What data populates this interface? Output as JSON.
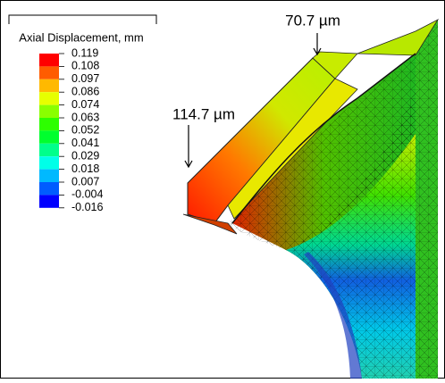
{
  "legend": {
    "title": "Axial Displacement, mm",
    "labels": [
      "0.119",
      "0.108",
      "0.097",
      "0.086",
      "0.074",
      "0.063",
      "0.052",
      "0.041",
      "0.029",
      "0.018",
      "0.007",
      "-0.004",
      "-0.016"
    ],
    "colors": [
      "#ff0000",
      "#ff5c00",
      "#ffb900",
      "#e6ff00",
      "#8aff00",
      "#2dff00",
      "#00ff2e",
      "#00ff8b",
      "#00ffe8",
      "#00b9ff",
      "#005cff",
      "#0000ff"
    ]
  },
  "annotations": [
    "70.7 µm",
    "114.7 µm"
  ]
}
